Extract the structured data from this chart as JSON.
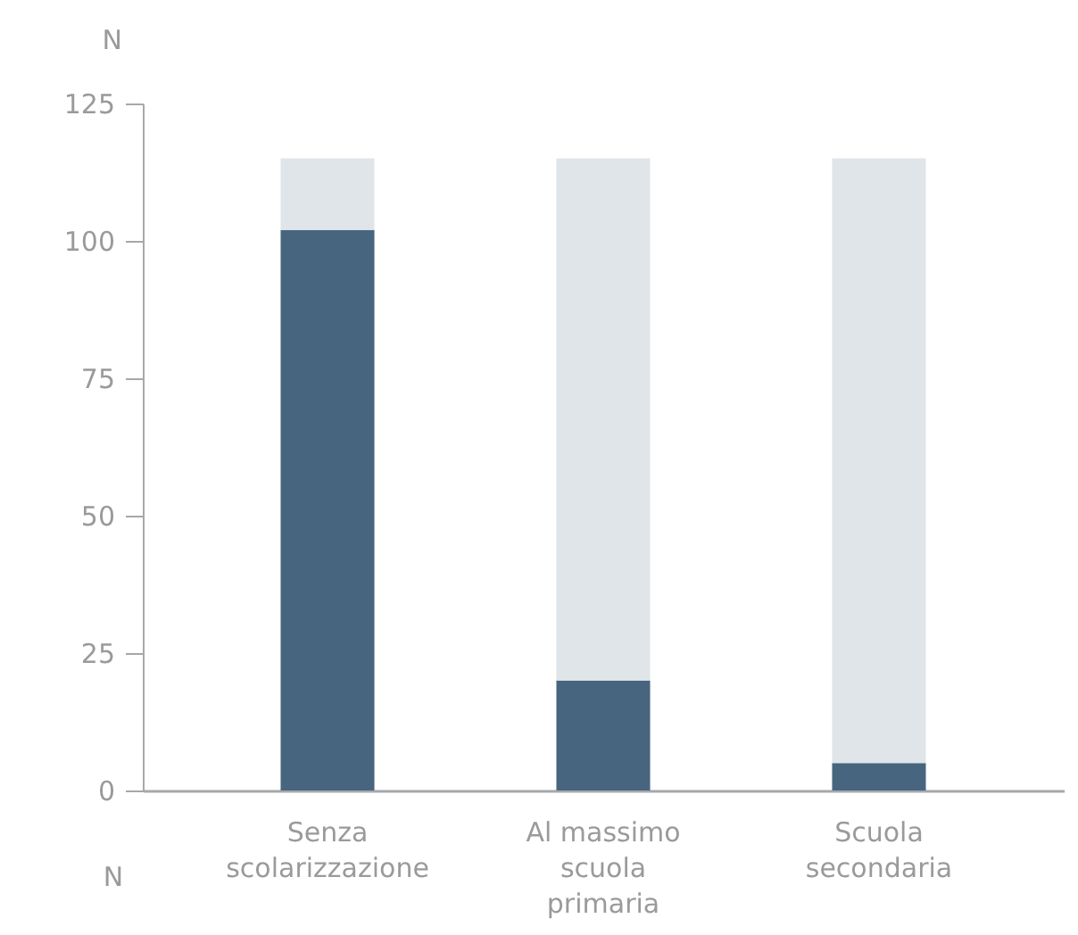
{
  "chart_data": {
    "type": "bar",
    "stacked": true,
    "ylabel": "N",
    "xlabel": "N",
    "categories": [
      "Senza scolarizzazione",
      "Al massimo scuola primaria",
      "Scuola secondaria"
    ],
    "series": [
      {
        "color": "#48657f",
        "values": [
          102,
          20,
          5
        ]
      },
      {
        "color": "#dfe5e9",
        "values": [
          13,
          95,
          110
        ]
      }
    ],
    "ylim": [
      0,
      125
    ],
    "yticks": [
      0,
      25,
      50,
      75,
      100,
      125
    ],
    "grid": false,
    "legend": false
  }
}
